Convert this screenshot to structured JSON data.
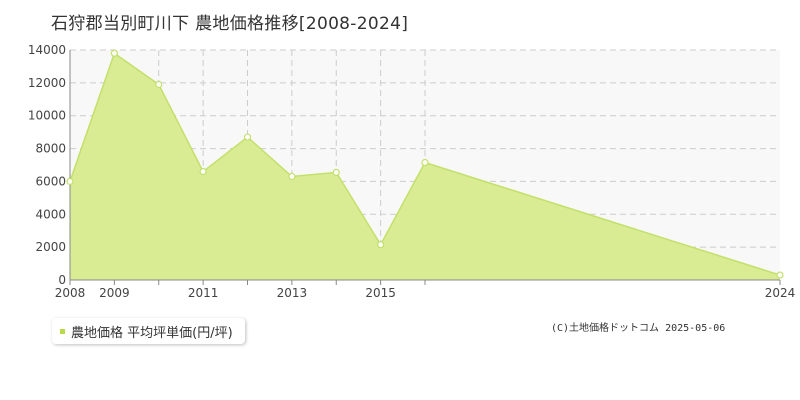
{
  "title": "石狩郡当別町川下 農地価格推移[2008-2024]",
  "legend": {
    "label": "農地価格 平均坪単価(円/坪)"
  },
  "source": "(C)土地価格ドットコム 2025-05-06",
  "colors": {
    "area_fill": "#d9ec94",
    "line": "#c2e06a",
    "marker_fill": "#ffffff",
    "plot_bg": "#f8f8f8",
    "grid": "#cccccc",
    "legend_swatch": "#b7d94a"
  },
  "chart_data": {
    "type": "area",
    "title": "石狩郡当別町川下 農地価格推移[2008-2024]",
    "xlabel": "",
    "ylabel": "",
    "xlim": [
      2008,
      2024
    ],
    "ylim": [
      0,
      14000
    ],
    "x_tick_labels": [
      "2008",
      "2009",
      "2011",
      "2013",
      "2015",
      "2024"
    ],
    "y_ticks": [
      0,
      2000,
      4000,
      6000,
      8000,
      10000,
      12000,
      14000
    ],
    "grid": true,
    "legend_position": "bottom-left",
    "series": [
      {
        "name": "農地価格 平均坪単価(円/坪)",
        "x": [
          2008,
          2009,
          2010,
          2011,
          2012,
          2013,
          2014,
          2015,
          2016,
          2024
        ],
        "y": [
          6000,
          13800,
          11900,
          6600,
          8700,
          6300,
          6550,
          2150,
          7150,
          300
        ]
      }
    ]
  }
}
